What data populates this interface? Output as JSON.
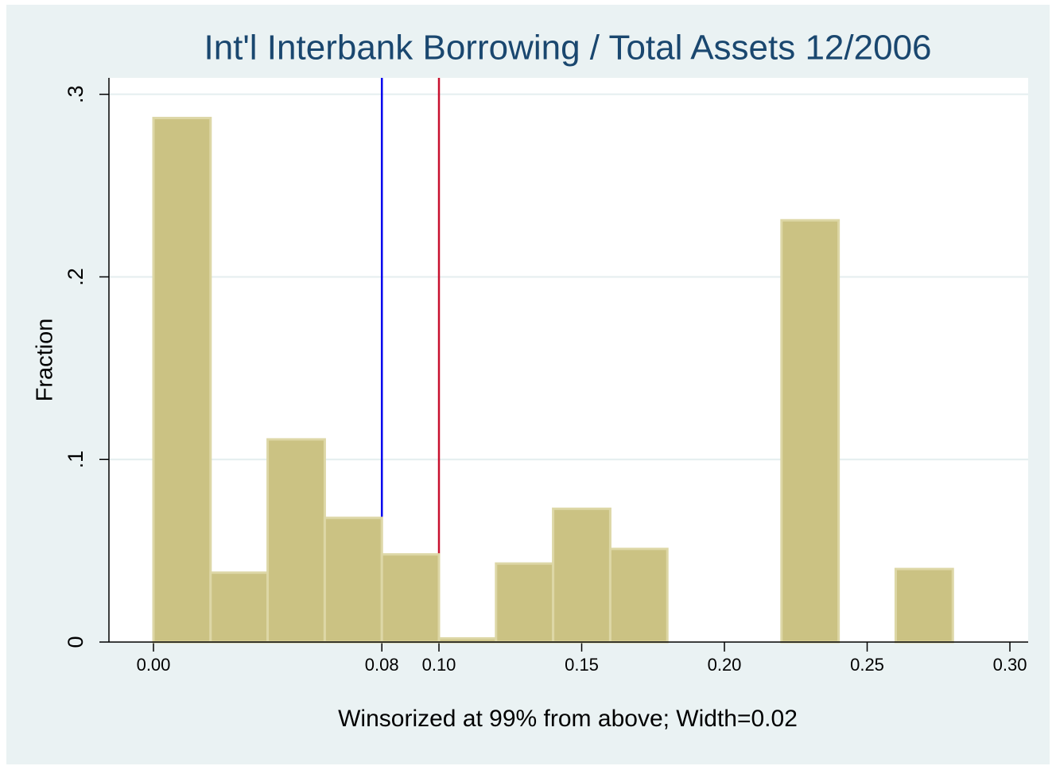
{
  "chart_data": {
    "type": "histogram",
    "title": "Int'l Interbank Borrowing / Total Assets 12/2006",
    "x_label": "Winsorized at 99% from above; Width=0.02",
    "y_label": "Fraction",
    "bins": [
      0,
      0.02,
      0.04,
      0.06,
      0.08,
      0.1,
      0.12,
      0.14,
      0.16,
      0.18,
      0.2,
      0.22,
      0.24,
      0.26,
      0.28
    ],
    "values": [
      0.287,
      0.038,
      0.111,
      0.068,
      0.048,
      0.002,
      0.043,
      0.073,
      0.051,
      0,
      0,
      0.231,
      0,
      0.04
    ],
    "color": "#cbc283",
    "edge_color": "#ddd7a6",
    "reference_lines": [
      {
        "value": 0.08,
        "color": "#0000ee"
      },
      {
        "value": 0.1,
        "color": "#c8102e"
      }
    ],
    "xlim": [
      -0.0156,
      0.3064
    ],
    "ylim": [
      0,
      0.309
    ],
    "xticks": [
      {
        "value": 0,
        "label": "0.00"
      },
      {
        "value": 0.08,
        "label": "0.08"
      },
      {
        "value": 0.1,
        "label": "0.10"
      },
      {
        "value": 0.15,
        "label": "0.15"
      },
      {
        "value": 0.2,
        "label": "0.20"
      },
      {
        "value": 0.25,
        "label": "0.25"
      },
      {
        "value": 0.3,
        "label": "0.30"
      }
    ],
    "yticks": [
      0,
      {
        "value": 0.1,
        "label": ".1"
      },
      {
        "value": 0.2,
        "label": ".2"
      },
      {
        "value": 0.3,
        "label": ".3"
      }
    ],
    "grid": true
  }
}
